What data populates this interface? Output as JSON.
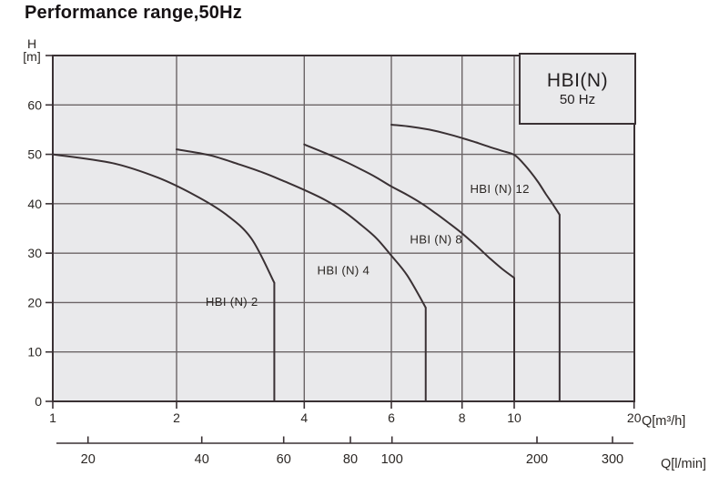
{
  "title": "Performance range,50Hz",
  "y_axis": {
    "unit_line1": "H",
    "unit_line2": "[m]",
    "ticks": [
      0,
      10,
      20,
      30,
      40,
      50,
      60
    ],
    "max": 70
  },
  "x_axis": {
    "unit": "Q[m³/h]",
    "ticks": [
      1,
      2,
      4,
      6,
      8,
      10,
      20
    ],
    "gridline_values": [
      2,
      4,
      6,
      8,
      10
    ]
  },
  "secondary_axis": {
    "unit": "Q[l/min]",
    "ticks": [
      20,
      40,
      60,
      80,
      100,
      200,
      300
    ]
  },
  "legend": {
    "line1": "HBI(N)",
    "line2": "50 Hz"
  },
  "colors": {
    "chart_bg": "#e9e9eb",
    "grid": "#6b6466",
    "border": "#3a3134",
    "curve": "#3a3134",
    "text": "#2b2724"
  },
  "chart_data": {
    "type": "line",
    "title": "Performance range,50Hz",
    "x_scale": "log",
    "xlabel": "Q[m³/h]",
    "x2label": "Q[l/min]",
    "ylabel": "H [m]",
    "x_range": [
      1,
      20
    ],
    "y_range": [
      0,
      70
    ],
    "grid": true,
    "legend_position": "top-right",
    "series": [
      {
        "name": "HBI (N) 2",
        "max_flow_m3h": 3.4,
        "label_pos": {
          "q": 2.7,
          "h": 20.2
        },
        "points": [
          [
            1,
            50
          ],
          [
            1.4,
            48.2
          ],
          [
            1.8,
            45.3
          ],
          [
            2.2,
            41.8
          ],
          [
            2.6,
            38
          ],
          [
            3.0,
            33
          ],
          [
            3.4,
            24
          ]
        ]
      },
      {
        "name": "HBI (N) 4",
        "max_flow_m3h": 6.9,
        "label_pos": {
          "q": 4.8,
          "h": 26.5
        },
        "points": [
          [
            2,
            51
          ],
          [
            2.4,
            49.8
          ],
          [
            2.8,
            48
          ],
          [
            3.2,
            46.3
          ],
          [
            3.6,
            44.5
          ],
          [
            4,
            42.8
          ],
          [
            4.4,
            40.8
          ],
          [
            4.8,
            38.5
          ],
          [
            5.2,
            35.8
          ],
          [
            5.6,
            33
          ],
          [
            6,
            29.5
          ],
          [
            6.4,
            25.5
          ],
          [
            6.9,
            19
          ]
        ]
      },
      {
        "name": "HBI (N) 8",
        "max_flow_m3h": 10,
        "label_pos": {
          "q": 7.2,
          "h": 32.8
        },
        "points": [
          [
            4,
            52
          ],
          [
            4.4,
            50.3
          ],
          [
            4.8,
            48.7
          ],
          [
            5.2,
            47
          ],
          [
            5.6,
            45.3
          ],
          [
            6,
            43.5
          ],
          [
            6.4,
            41.8
          ],
          [
            6.8,
            40
          ],
          [
            7.2,
            38
          ],
          [
            7.6,
            36
          ],
          [
            8,
            34
          ],
          [
            8.5,
            31.5
          ],
          [
            9,
            29
          ],
          [
            9.5,
            26.8
          ],
          [
            10,
            25
          ]
        ]
      },
      {
        "name": "HBI (N) 12",
        "max_flow_m3h": 13,
        "label_pos": {
          "q": 9.4,
          "h": 43
        },
        "points": [
          [
            6,
            56
          ],
          [
            6.5,
            55.6
          ],
          [
            7,
            55
          ],
          [
            7.5,
            54.2
          ],
          [
            8,
            53.3
          ],
          [
            8.5,
            52.4
          ],
          [
            9,
            51.5
          ],
          [
            9.5,
            50.7
          ],
          [
            10,
            49.9
          ],
          [
            10.5,
            48.3
          ],
          [
            11,
            46.4
          ],
          [
            11.5,
            44.3
          ],
          [
            12,
            42
          ],
          [
            12.5,
            39.9
          ],
          [
            13,
            37.8
          ]
        ]
      }
    ]
  }
}
